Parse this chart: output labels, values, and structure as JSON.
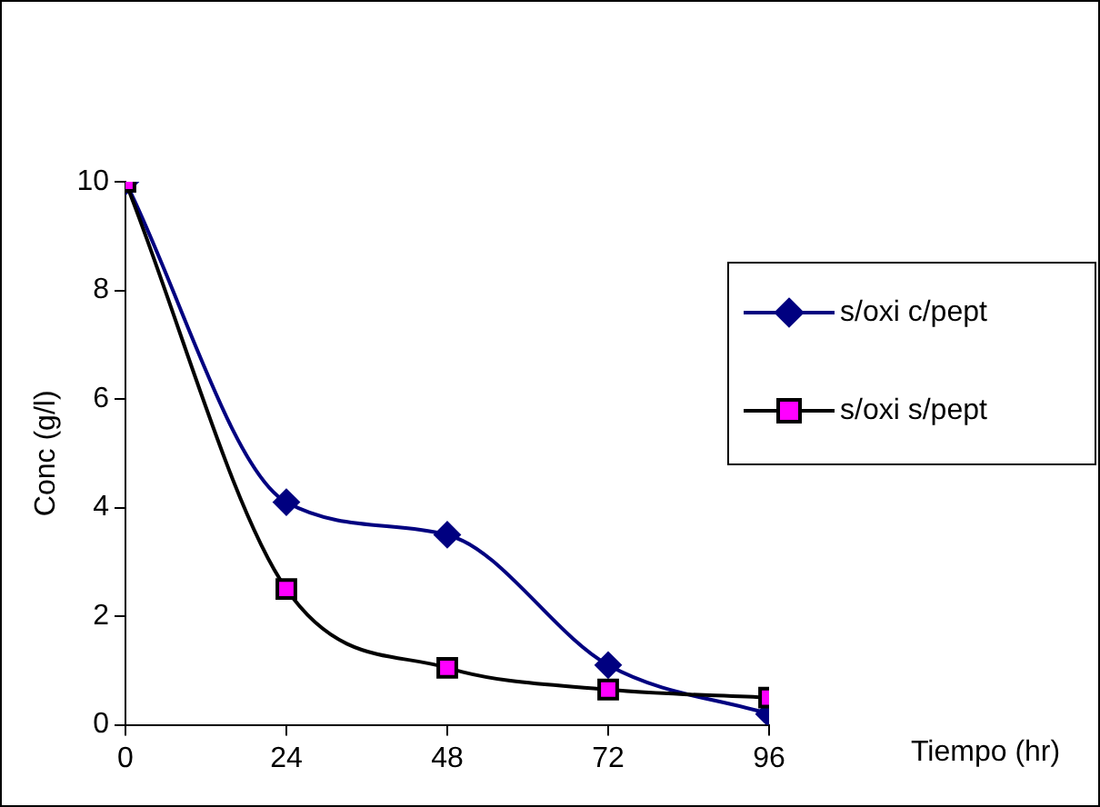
{
  "chart_data": {
    "type": "line",
    "xlabel": "Tiempo (hr)",
    "ylabel": "Conc (g/l)",
    "x": [
      0,
      24,
      48,
      72,
      96
    ],
    "series": [
      {
        "name": "s/oxi c/pept",
        "color": "#000080",
        "marker": "diamond",
        "values": [
          10,
          4.1,
          3.5,
          1.1,
          0.2
        ]
      },
      {
        "name": "s/oxi s/pept",
        "color": "#ff00ff",
        "marker": "square",
        "values": [
          10,
          2.5,
          1.05,
          0.65,
          0.5
        ]
      }
    ],
    "xlim": [
      0,
      96
    ],
    "xticks": [
      0,
      24,
      48,
      72,
      96
    ],
    "ylim": [
      0,
      10
    ],
    "yticks": [
      0,
      2,
      4,
      6,
      8,
      10
    ],
    "grid": false,
    "legend": "right"
  }
}
